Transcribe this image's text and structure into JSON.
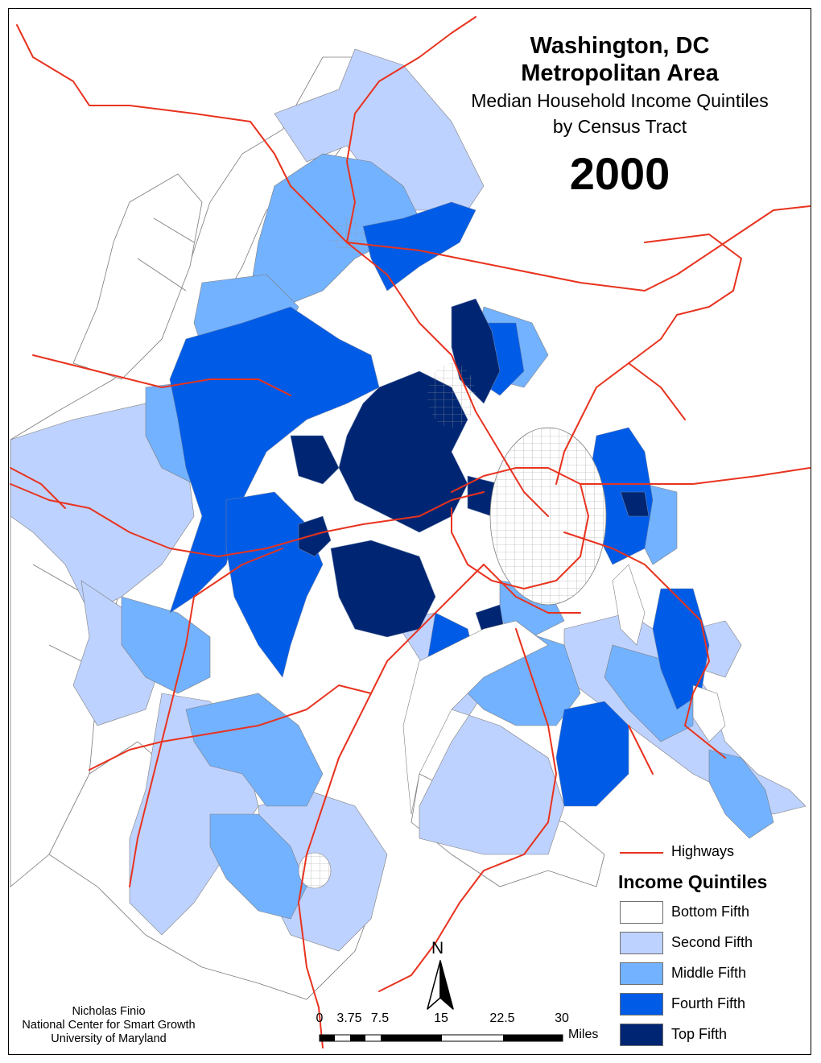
{
  "title": {
    "line1": "Washington, DC",
    "line2": "Metropolitan Area",
    "line3": "Median Household Income Quintiles",
    "line4": "by Census Tract",
    "year": "2000"
  },
  "legend": {
    "highways_label": "Highways",
    "highways_color": "#e8331f",
    "title": "Income Quintiles",
    "items": [
      {
        "label": "Bottom Fifth",
        "color": "#ffffff"
      },
      {
        "label": "Second Fifth",
        "color": "#bed2ff"
      },
      {
        "label": "Middle Fifth",
        "color": "#73b2ff"
      },
      {
        "label": "Fourth Fifth",
        "color": "#005ce6"
      },
      {
        "label": "Top Fifth",
        "color": "#002673"
      }
    ]
  },
  "scale_bar": {
    "ticks": [
      "0",
      "3.75",
      "7.5",
      "15",
      "22.5",
      "30"
    ],
    "unit": "Miles"
  },
  "north_arrow": {
    "label": "N"
  },
  "credit": {
    "line1": "Nicholas Finio",
    "line2": "National Center for Smart Growth",
    "line3": "University of Maryland"
  }
}
